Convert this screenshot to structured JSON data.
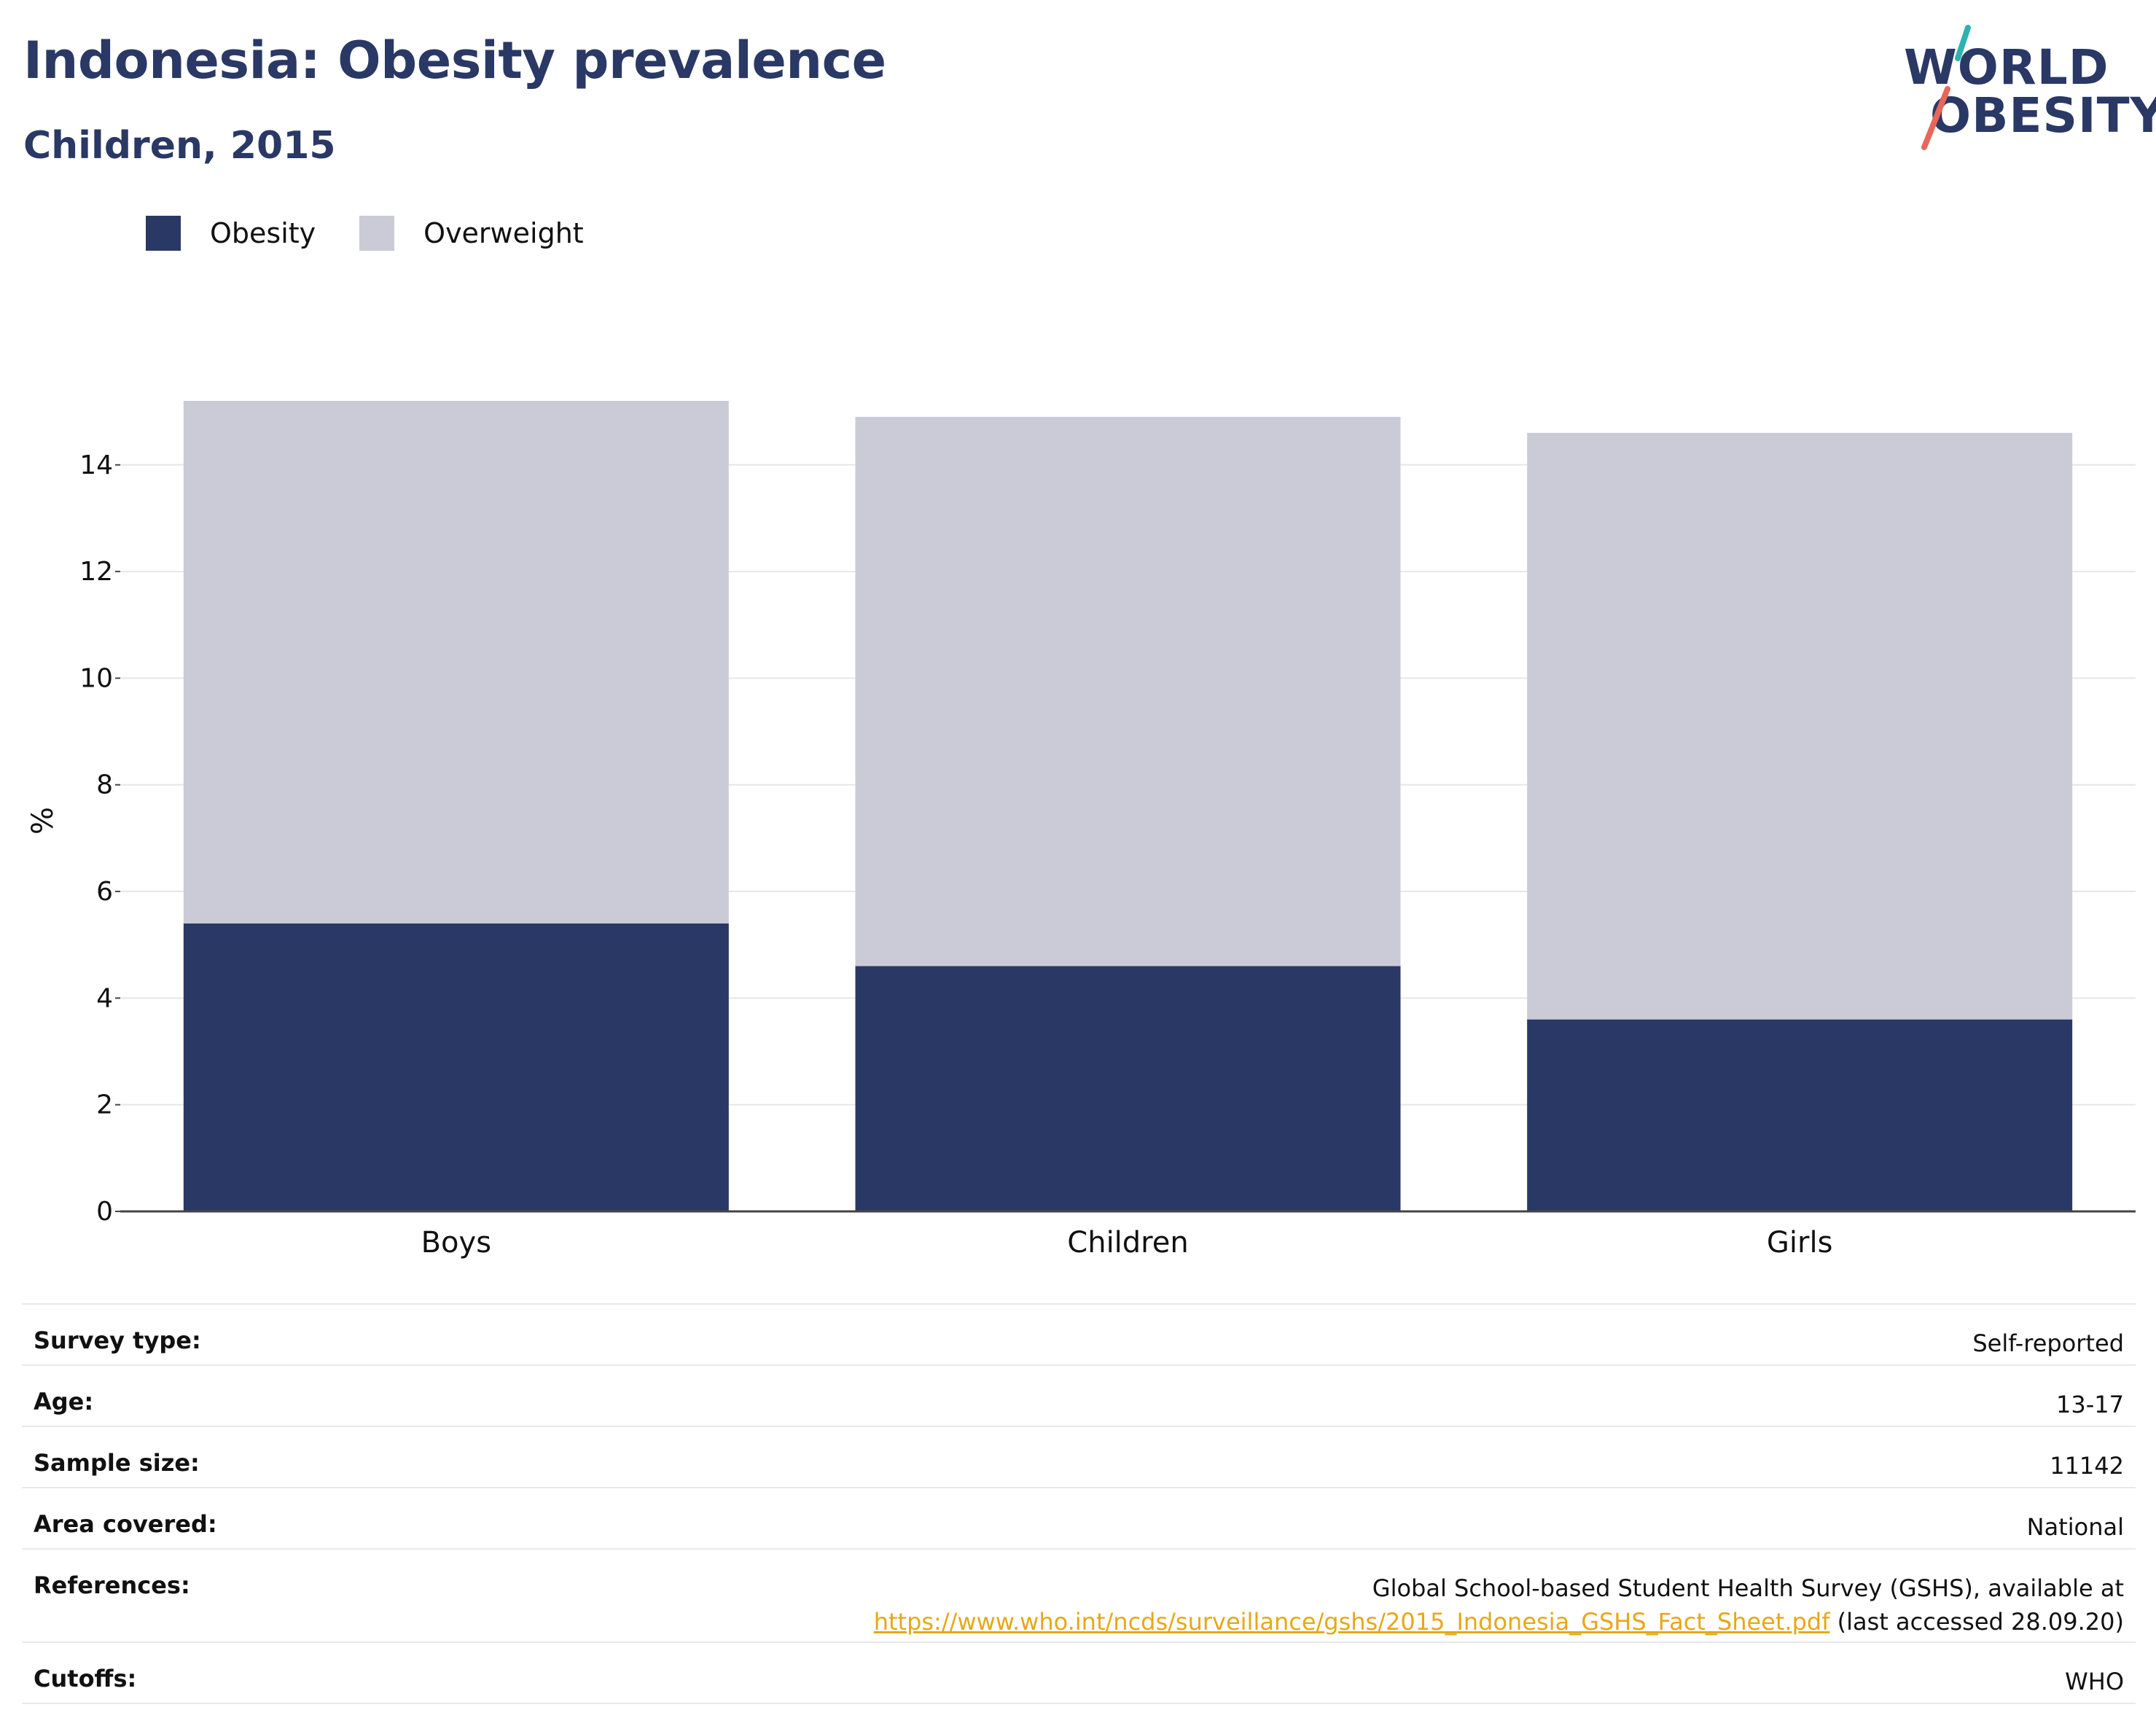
{
  "header": {
    "title": "Indonesia: Obesity prevalence",
    "subtitle": "Children, 2015"
  },
  "logo": {
    "line1": "WORLD",
    "line2": "OBESITY"
  },
  "legend": {
    "items": [
      {
        "label": "Obesity",
        "color": "#2a3865"
      },
      {
        "label": "Overweight",
        "color": "#cacbd7"
      }
    ]
  },
  "chart_data": {
    "type": "bar",
    "stacked": true,
    "categories": [
      "Boys",
      "Children",
      "Girls"
    ],
    "series": [
      {
        "name": "Obesity",
        "values": [
          5.4,
          4.6,
          3.6
        ],
        "color": "#2a3865"
      },
      {
        "name": "Overweight",
        "values": [
          9.8,
          10.3,
          11.0
        ],
        "color": "#cacbd7"
      }
    ],
    "ylabel": "%",
    "ylim": [
      0,
      15.2
    ],
    "yticks": [
      0,
      2,
      4,
      6,
      8,
      10,
      12,
      14
    ],
    "grid": true,
    "legend_position": "top-left"
  },
  "meta": {
    "rows": [
      {
        "label": "Survey type:",
        "value": "Self-reported"
      },
      {
        "label": "Age:",
        "value": "13-17"
      },
      {
        "label": "Sample size:",
        "value": "11142"
      },
      {
        "label": "Area covered:",
        "value": "National"
      }
    ],
    "references": {
      "label": "References:",
      "text": "Global School-based Student Health Survey (GSHS), available at",
      "link": "https://www.who.int/ncds/surveillance/gshs/2015_Indonesia_GSHS_Fact_Sheet.pdf",
      "suffix": "(last accessed 28.09.20)"
    },
    "cutoffs": {
      "label": "Cutoffs:",
      "value": "WHO"
    }
  }
}
